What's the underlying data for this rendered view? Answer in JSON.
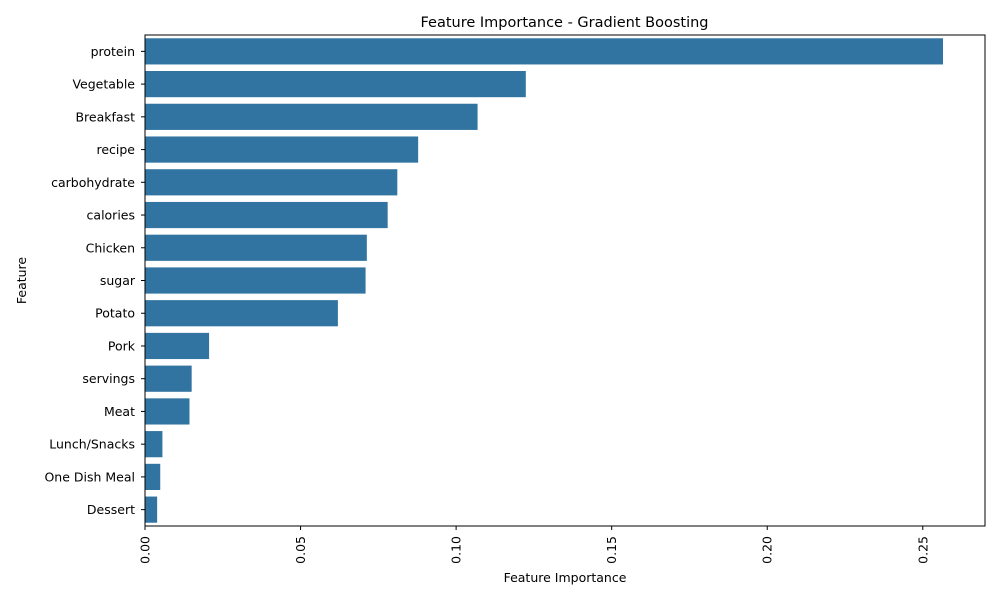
{
  "chart_data": {
    "type": "bar",
    "orientation": "horizontal",
    "title": "Feature Importance - Gradient Boosting",
    "xlabel": "Feature Importance",
    "ylabel": "Feature",
    "categories": [
      "protein",
      "Vegetable",
      "Breakfast",
      "recipe",
      "carbohydrate",
      "calories",
      "Chicken",
      "sugar",
      "Potato",
      "Pork",
      "servings",
      "Meat",
      "Lunch/Snacks",
      "One Dish Meal",
      "Dessert"
    ],
    "values": [
      0.2565,
      0.1224,
      0.1069,
      0.0878,
      0.0811,
      0.078,
      0.0713,
      0.0709,
      0.062,
      0.0206,
      0.015,
      0.0143,
      0.0056,
      0.0049,
      0.0039
    ],
    "xlim": [
      0,
      0.27
    ],
    "xticks": [
      0.0,
      0.05,
      0.1,
      0.15,
      0.2,
      0.25
    ],
    "xtick_labels": [
      "0.00",
      "0.05",
      "0.10",
      "0.15",
      "0.20",
      "0.25"
    ],
    "bar_color": "#3274a1",
    "grid": false,
    "legend": "none"
  }
}
